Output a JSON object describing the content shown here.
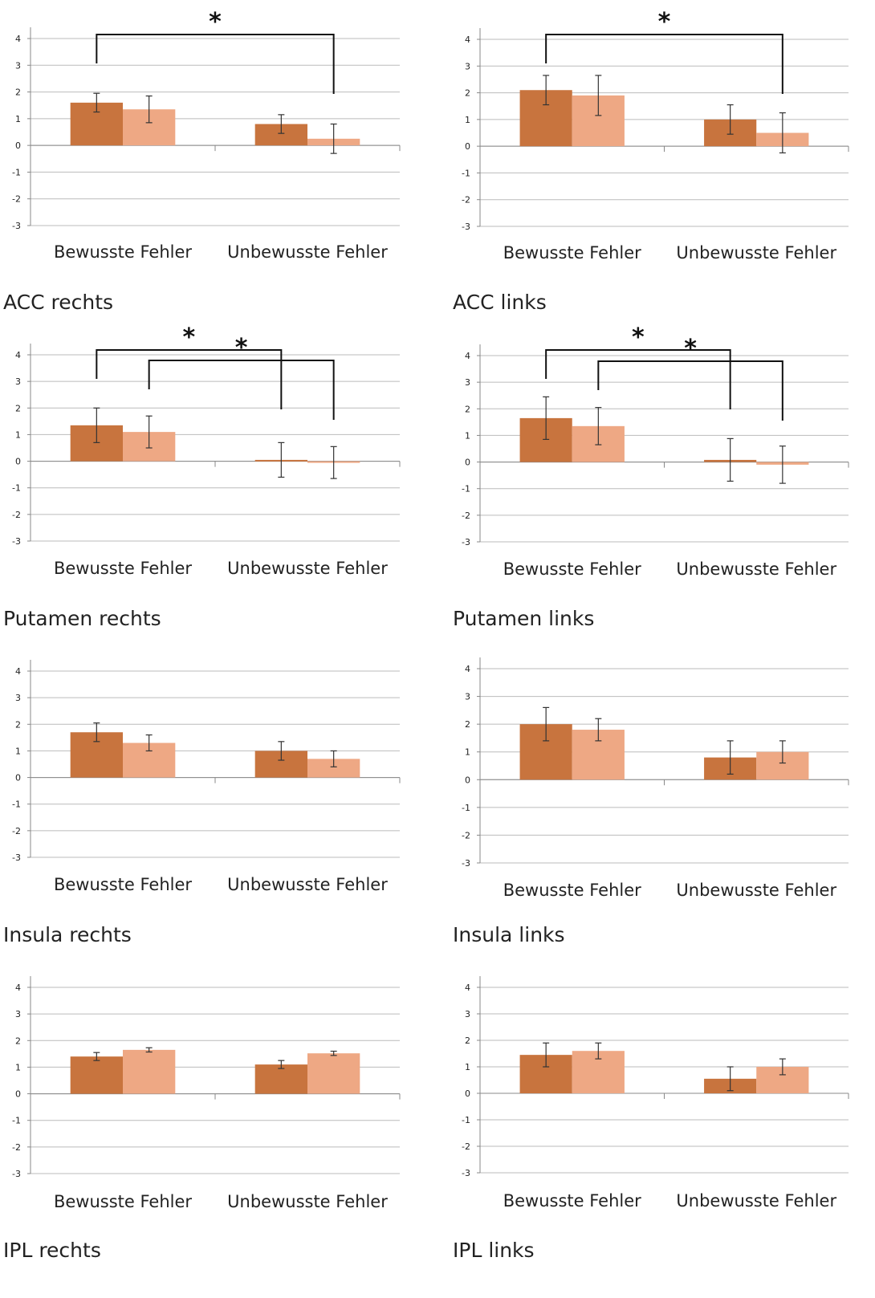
{
  "colors": {
    "series_dark": "#C8743E",
    "series_light": "#EEA884",
    "gridline": "#BBBBBB",
    "axis": "#888888",
    "errorbar": "#333333",
    "bracket": "#111111",
    "text": "#222222"
  },
  "chart_data": [
    {
      "type": "bar",
      "title": "ACC rechts",
      "categories": [
        "Bewusste Fehler",
        "Unbewusste Fehler"
      ],
      "ylim": [
        -3,
        4
      ],
      "yticks": [
        "-3",
        "-2",
        "-1",
        "0",
        "1",
        "2",
        "3",
        "4"
      ],
      "grid": true,
      "series": [
        {
          "values": [
            1.6,
            0.8
          ],
          "error": [
            0.35,
            0.35
          ]
        },
        {
          "values": [
            1.35,
            0.25
          ],
          "error": [
            0.5,
            0.55
          ]
        }
      ],
      "annotations": [
        {
          "text": "*",
          "from": [
            0,
            0
          ],
          "to": [
            1,
            1
          ]
        }
      ]
    },
    {
      "type": "bar",
      "title": "ACC links",
      "categories": [
        "Bewusste Fehler",
        "Unbewusste Fehler"
      ],
      "ylim": [
        -3,
        4
      ],
      "yticks": [
        "-3",
        "-2",
        "-1",
        "0",
        "1",
        "2",
        "3",
        "4"
      ],
      "grid": true,
      "series": [
        {
          "values": [
            2.1,
            1.0
          ],
          "error": [
            0.55,
            0.55
          ]
        },
        {
          "values": [
            1.9,
            0.5
          ],
          "error": [
            0.75,
            0.75
          ]
        }
      ],
      "annotations": [
        {
          "text": "*",
          "from": [
            0,
            0
          ],
          "to": [
            1,
            1
          ]
        }
      ]
    },
    {
      "type": "bar",
      "title": "Putamen rechts",
      "categories": [
        "Bewusste Fehler",
        "Unbewusste Fehler"
      ],
      "ylim": [
        -3,
        4
      ],
      "yticks": [
        "-3",
        "-2",
        "-1",
        "0",
        "1",
        "2",
        "3",
        "4"
      ],
      "grid": true,
      "series": [
        {
          "values": [
            1.35,
            0.05
          ],
          "error": [
            0.65,
            0.65
          ]
        },
        {
          "values": [
            1.1,
            -0.05
          ],
          "error": [
            0.6,
            0.6
          ]
        }
      ],
      "annotations": [
        {
          "text": "*",
          "from": [
            0,
            0
          ],
          "to": [
            1,
            0
          ]
        },
        {
          "text": "*",
          "from": [
            0,
            1
          ],
          "to": [
            1,
            1
          ]
        }
      ]
    },
    {
      "type": "bar",
      "title": "Putamen links",
      "categories": [
        "Bewusste Fehler",
        "Unbewusste Fehler"
      ],
      "ylim": [
        -3,
        4
      ],
      "yticks": [
        "-3",
        "-2",
        "-1",
        "0",
        "1",
        "2",
        "3",
        "4"
      ],
      "grid": true,
      "series": [
        {
          "values": [
            1.65,
            0.08
          ],
          "error": [
            0.8,
            0.8
          ]
        },
        {
          "values": [
            1.35,
            -0.1
          ],
          "error": [
            0.7,
            0.7
          ]
        }
      ],
      "annotations": [
        {
          "text": "*",
          "from": [
            0,
            0
          ],
          "to": [
            1,
            0
          ]
        },
        {
          "text": "*",
          "from": [
            0,
            1
          ],
          "to": [
            1,
            1
          ]
        }
      ]
    },
    {
      "type": "bar",
      "title": "Insula rechts",
      "categories": [
        "Bewusste Fehler",
        "Unbewusste Fehler"
      ],
      "ylim": [
        -3,
        4
      ],
      "yticks": [
        "-3",
        "-2",
        "-1",
        "0",
        "1",
        "2",
        "3",
        "4"
      ],
      "grid": true,
      "series": [
        {
          "values": [
            1.7,
            1.0
          ],
          "error": [
            0.35,
            0.35
          ]
        },
        {
          "values": [
            1.3,
            0.7
          ],
          "error": [
            0.3,
            0.3
          ]
        }
      ],
      "annotations": []
    },
    {
      "type": "bar",
      "title": "Insula links",
      "categories": [
        "Bewusste Fehler",
        "Unbewusste Fehler"
      ],
      "ylim": [
        -3,
        4
      ],
      "yticks": [
        "-3",
        "-2",
        "-1",
        "0",
        "1",
        "2",
        "3",
        "4"
      ],
      "grid": true,
      "series": [
        {
          "values": [
            2.0,
            0.8
          ],
          "error": [
            0.6,
            0.6
          ]
        },
        {
          "values": [
            1.8,
            1.0
          ],
          "error": [
            0.4,
            0.4
          ]
        }
      ],
      "annotations": []
    },
    {
      "type": "bar",
      "title": "IPL rechts",
      "categories": [
        "Bewusste Fehler",
        "Unbewusste Fehler"
      ],
      "ylim": [
        -3,
        4
      ],
      "yticks": [
        "-3",
        "-2",
        "-1",
        "0",
        "1",
        "2",
        "3",
        "4"
      ],
      "grid": true,
      "series": [
        {
          "values": [
            1.4,
            1.1
          ],
          "error": [
            0.15,
            0.15
          ]
        },
        {
          "values": [
            1.65,
            1.52
          ],
          "error": [
            0.08,
            0.08
          ]
        }
      ],
      "annotations": []
    },
    {
      "type": "bar",
      "title": "IPL links",
      "categories": [
        "Bewusste Fehler",
        "Unbewusste Fehler"
      ],
      "ylim": [
        -3,
        4
      ],
      "yticks": [
        "-3",
        "-2",
        "-1",
        "0",
        "1",
        "2",
        "3",
        "4"
      ],
      "grid": true,
      "series": [
        {
          "values": [
            1.45,
            0.55
          ],
          "error": [
            0.45,
            0.45
          ]
        },
        {
          "values": [
            1.6,
            1.0
          ],
          "error": [
            0.3,
            0.3
          ]
        }
      ],
      "annotations": []
    }
  ]
}
